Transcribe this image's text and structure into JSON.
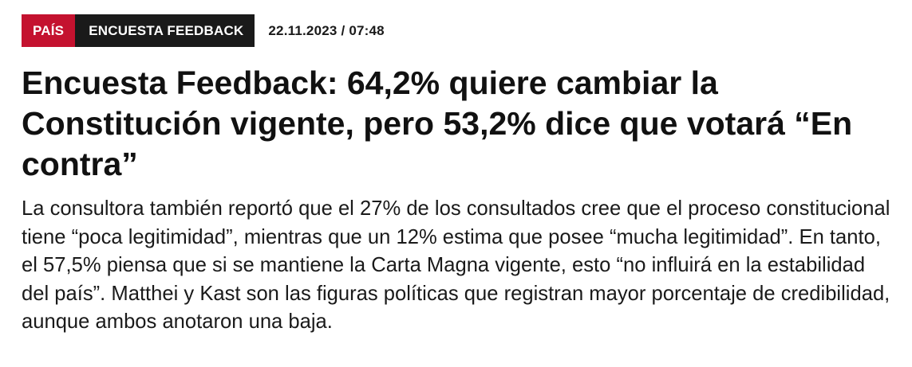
{
  "article": {
    "section_tag": "PAÍS",
    "topic_tag": "ENCUESTA FEEDBACK",
    "timestamp": "22.11.2023 / 07:48",
    "headline": "Encuesta Feedback: 64,2% quiere cambiar la Constitución vigente, pero 53,2% dice que votará “En contra”",
    "summary": "La consultora también reportó que el 27% de los consultados cree que el proceso constitucional tiene “poca legitimidad”, mientras que un 12% estima que posee “mucha legitimidad”. En tanto, el 57,5% piensa que si se mantiene la Carta Magna vigente, esto “no influirá en la estabilidad del país”. Matthei y Kast son las figuras políticas que registran mayor porcentaje de credibilidad, aunque ambos anotaron una baja."
  },
  "colors": {
    "section_tag_bg": "#c4122f",
    "topic_tag_bg": "#1a1a1a",
    "text": "#111111"
  }
}
